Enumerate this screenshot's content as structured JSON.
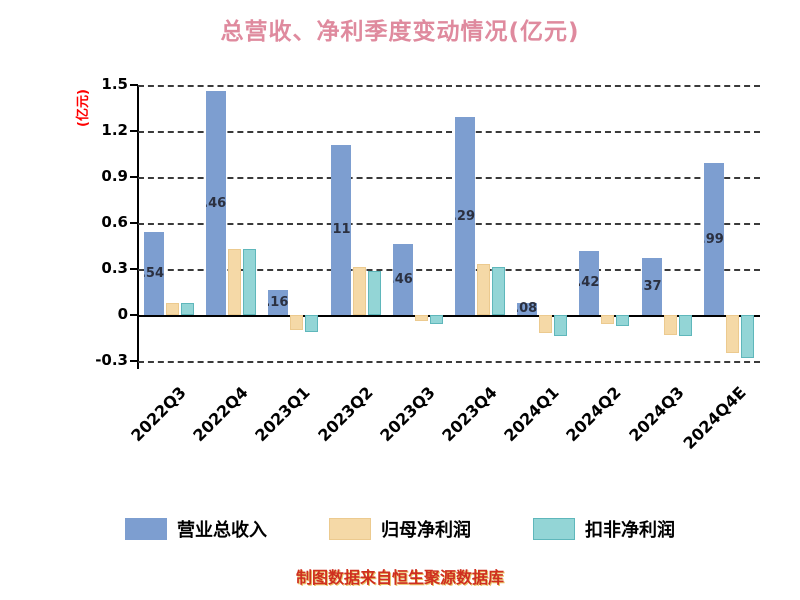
{
  "title": "总营收、净利季度变动情况(亿元)",
  "y_axis_label": "(亿元)",
  "footer": "制图数据来自恒生聚源数据库",
  "colors": {
    "title": "#df8a9e",
    "y_axis_label": "#ff0000",
    "footer": "#cf2f1f",
    "series_fill": [
      "#7d9ed0",
      "#f5d9a7",
      "#93d5d6"
    ],
    "series_border": [
      "#7d9ed0",
      "#ecca8f",
      "#5fb7bb"
    ]
  },
  "chart_data": {
    "type": "bar",
    "title": "总营收、净利季度变动情况(亿元)",
    "ylabel": "(亿元)",
    "categories": [
      "2022Q3",
      "2022Q4",
      "2023Q1",
      "2023Q2",
      "2023Q3",
      "2023Q4",
      "2024Q1",
      "2024Q2",
      "2024Q3",
      "2024Q4E"
    ],
    "series": [
      {
        "name": "营业总收入",
        "values": [
          0.54,
          1.46,
          0.16,
          1.11,
          0.46,
          1.29,
          0.08,
          0.42,
          0.37,
          0.99
        ],
        "show_labels": true
      },
      {
        "name": "归母净利润",
        "values": [
          0.08,
          0.43,
          -0.1,
          0.31,
          -0.04,
          0.33,
          -0.12,
          -0.06,
          -0.13,
          -0.25
        ],
        "show_labels": false
      },
      {
        "name": "扣非净利润",
        "values": [
          0.08,
          0.43,
          -0.11,
          0.29,
          -0.06,
          0.31,
          -0.14,
          -0.07,
          -0.14,
          -0.28
        ],
        "show_labels": false
      }
    ],
    "ylim": [
      -0.3,
      1.5
    ],
    "yticks": [
      1.5,
      1.2,
      0.9,
      0.6,
      0.3,
      0,
      -0.3
    ],
    "grid": "dashed-horizontal",
    "legend_position": "bottom"
  }
}
